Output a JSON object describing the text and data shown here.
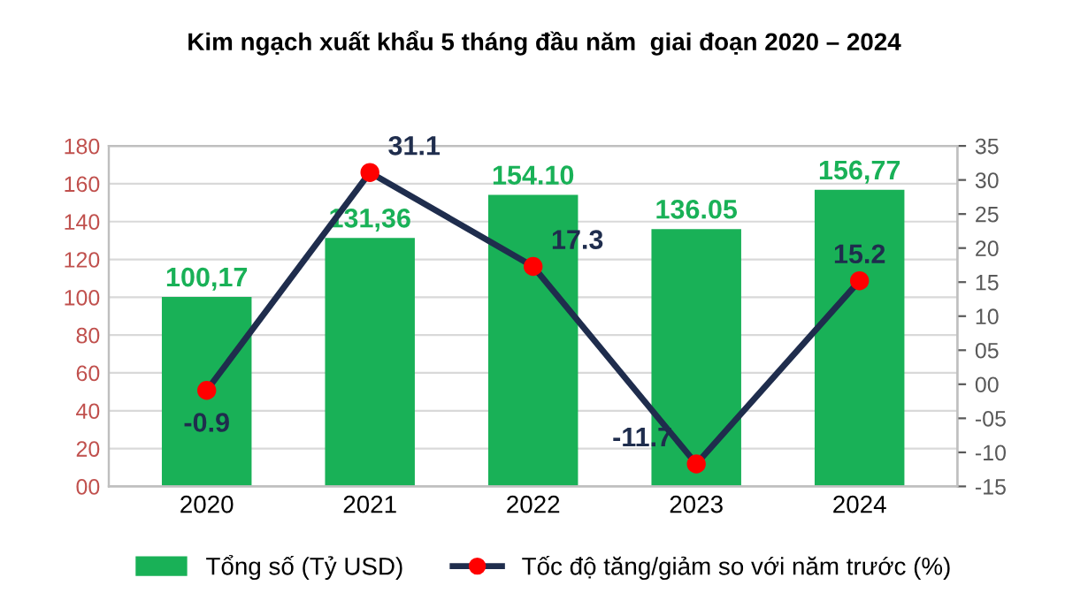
{
  "chart_data": {
    "type": "bar",
    "title": "Kim ngạch xuất khẩu 5 tháng đầu năm  giai đoạn 2020 – 2024",
    "categories": [
      "2020",
      "2021",
      "2022",
      "2023",
      "2024"
    ],
    "series": [
      {
        "name": "Tổng số (Tỷ USD)",
        "color": "#19b157",
        "values": [
          100.17,
          131.36,
          154.1,
          136.05,
          156.77
        ],
        "value_labels": [
          "100,17",
          "131,36",
          "154.10",
          "136.05",
          "156,77"
        ]
      },
      {
        "name": "Tốc độ tăng/giảm so với năm trước (%)",
        "type": "line",
        "axis": "y2",
        "color": "#1f2d4d",
        "colors": [
          "#ff0000",
          "#ff0000",
          "#ff0000",
          "#ff0000",
          "#ff0000"
        ],
        "marker": "circle",
        "values": [
          -0.9,
          31.1,
          17.3,
          -11.7,
          15.2
        ],
        "value_labels": [
          "-0.9",
          "31.1",
          "17.3",
          "-11.7",
          "15.2"
        ]
      }
    ],
    "ylim": [
      0,
      180
    ],
    "yticks": [
      {
        "value": 0,
        "label": "00"
      },
      20,
      40,
      60,
      80,
      100,
      120,
      140,
      160,
      180
    ],
    "y2lim": [
      -15,
      35
    ],
    "y2ticks": [
      -15,
      -10,
      {
        "value": -5,
        "label": "-05"
      },
      {
        "value": 0,
        "label": "00"
      },
      {
        "value": 5,
        "label": "05"
      },
      10,
      15,
      20,
      25,
      30,
      35
    ],
    "grid": "y",
    "legend": "bottom"
  }
}
